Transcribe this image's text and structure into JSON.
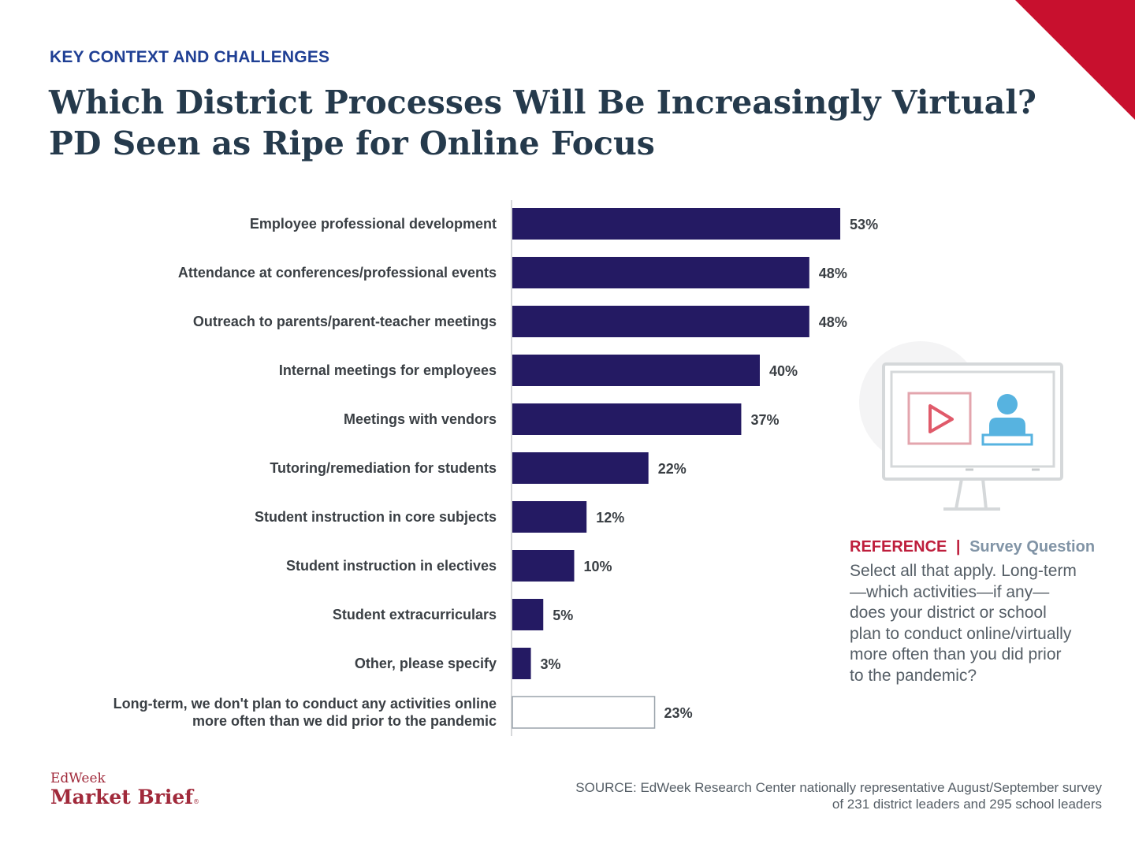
{
  "header": {
    "kicker": "KEY CONTEXT AND CHALLENGES",
    "title_line1": "Which District Processes Will Be Increasingly Virtual?",
    "title_line2": "PD Seen as Ripe for Online Focus"
  },
  "chart_data": {
    "type": "bar",
    "orientation": "horizontal",
    "categories": [
      [
        "Employee professional development"
      ],
      [
        "Attendance at conferences/professional events"
      ],
      [
        "Outreach to parents/parent-teacher meetings"
      ],
      [
        "Internal meetings for employees"
      ],
      [
        "Meetings with vendors"
      ],
      [
        "Tutoring/remediation for students"
      ],
      [
        "Student instruction in core subjects"
      ],
      [
        "Student instruction in electives"
      ],
      [
        "Student extracurriculars"
      ],
      [
        "Other, please specify"
      ],
      [
        "Long-term, we don't plan to conduct any activities online",
        "more often than we did prior to the pandemic"
      ]
    ],
    "values": [
      53,
      48,
      48,
      40,
      37,
      22,
      12,
      10,
      5,
      3,
      23
    ],
    "value_labels": [
      "53%",
      "48%",
      "48%",
      "40%",
      "37%",
      "22%",
      "12%",
      "10%",
      "5%",
      "3%",
      "23%"
    ],
    "styles": [
      "filled",
      "filled",
      "filled",
      "filled",
      "filled",
      "filled",
      "filled",
      "filled",
      "filled",
      "filled",
      "outline"
    ],
    "grid": false,
    "colors": {
      "bar": "#241a63",
      "outline_bar": "#9aa3ab",
      "category_text": "#3a3f44",
      "value_text": "#3a3f44"
    }
  },
  "reference": {
    "label": "REFERENCE",
    "separator": "|",
    "label2": "Survey Question",
    "text": "Select all that apply. Long-term—which activities—if any—does your district or school plan to conduct online/virtually more often than you did prior to the pandemic?"
  },
  "footer": {
    "logo_top": "EdWeek",
    "logo_bottom": "Market Brief",
    "logo_mark": "®",
    "source_line1": "SOURCE: EdWeek Research Center nationally representative August/September survey",
    "source_line2": "of 231 district leaders and 295 school leaders"
  },
  "icons": {
    "illustration": "monitor-video-person-icon",
    "corner": "corner-triangle-decoration"
  },
  "colors": {
    "accent_red": "#be1e3c",
    "title": "#253a4c",
    "kicker": "#1f3f94",
    "muted": "#8194a6"
  }
}
